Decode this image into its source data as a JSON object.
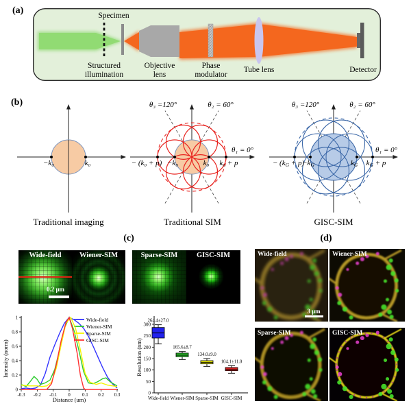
{
  "figure": {
    "panel_a": {
      "tag": "(a)",
      "labels": {
        "specimen": "Specimen",
        "structured_1": "Structured",
        "structured_2": "illumination",
        "objective_1": "Objective",
        "objective_2": "lens",
        "phase_1": "Phase",
        "phase_2": "modulator",
        "tube_lens": "Tube lens",
        "detector": "Detector"
      }
    },
    "panel_b": {
      "tag": "(b)",
      "traditional_imaging": {
        "caption": "Traditional imaging",
        "neg_k0": "−k₀",
        "k0": "k₀"
      },
      "traditional_sim": {
        "caption": "Traditional SIM",
        "theta3": "θ₃ =120°",
        "theta2": "θ₂ = 60°",
        "theta1": "θ₁ = 0°",
        "neg_k0p": "− (k₀ + p)",
        "neg_k0": "−k₀",
        "k0": "k₀",
        "k0p": "k₀ + p"
      },
      "gisc_sim": {
        "caption": "GISC-SIM",
        "theta3": "θ₃ =120°",
        "theta2": "θ₂ = 60°",
        "theta1": "θ₁ = 0°",
        "neg_kgp": [
          "− (k",
          "G",
          " + p)"
        ],
        "neg_kg": [
          "−k",
          "G",
          ""
        ],
        "kg": [
          "k",
          "G",
          ""
        ],
        "kgp": [
          "k",
          "G",
          " + p"
        ]
      }
    },
    "panel_c": {
      "tag": "(c)",
      "images": [
        {
          "label": "Wide-field",
          "scalebar": "0.2 μm"
        },
        {
          "label": "Wiener-SIM"
        },
        {
          "label": "Sparse-SIM"
        },
        {
          "label": "GISC-SIM"
        }
      ]
    },
    "panel_d": {
      "tag": "(d)",
      "images": [
        {
          "label": "Wide-field",
          "scalebar": "3 μm"
        },
        {
          "label": "Wiener-SIM"
        },
        {
          "label": "Sparse-SIM"
        },
        {
          "label": "GISC-SIM"
        }
      ]
    }
  },
  "chart_data": [
    {
      "type": "line",
      "title": "",
      "xlabel": "Distance (um)",
      "ylabel": "Intensity (norm)",
      "xlim": [
        -0.3,
        0.3
      ],
      "ylim": [
        0,
        1
      ],
      "xticks": [
        -0.3,
        -0.2,
        -0.1,
        0,
        0.1,
        0.2,
        0.3
      ],
      "yticks": [
        0,
        0.2,
        0.4,
        0.6,
        0.8,
        1
      ],
      "grid": false,
      "legend_position": "top-right",
      "series": [
        {
          "name": "Wide-field",
          "color": "#3434ff",
          "points": [
            [
              -0.3,
              0.01
            ],
            [
              -0.27,
              0.02
            ],
            [
              -0.24,
              0.01
            ],
            [
              -0.21,
              0.02
            ],
            [
              -0.18,
              0.06
            ],
            [
              -0.15,
              0.22
            ],
            [
              -0.12,
              0.45
            ],
            [
              -0.09,
              0.62
            ],
            [
              -0.06,
              0.78
            ],
            [
              -0.03,
              0.92
            ],
            [
              0,
              1
            ],
            [
              0.03,
              0.97
            ],
            [
              0.06,
              0.92
            ],
            [
              0.09,
              0.85
            ],
            [
              0.12,
              0.74
            ],
            [
              0.15,
              0.6
            ],
            [
              0.18,
              0.45
            ],
            [
              0.21,
              0.3
            ],
            [
              0.24,
              0.17
            ],
            [
              0.27,
              0.08
            ],
            [
              0.3,
              0.02
            ]
          ]
        },
        {
          "name": "Wiener-SIM",
          "color": "#2ecc2e",
          "points": [
            [
              -0.3,
              0.07
            ],
            [
              -0.27,
              0.04
            ],
            [
              -0.24,
              0.12
            ],
            [
              -0.22,
              0.18
            ],
            [
              -0.2,
              0.14
            ],
            [
              -0.18,
              0.07
            ],
            [
              -0.15,
              0.09
            ],
            [
              -0.12,
              0.13
            ],
            [
              -0.09,
              0.28
            ],
            [
              -0.06,
              0.55
            ],
            [
              -0.03,
              0.85
            ],
            [
              0,
              1
            ],
            [
              0.03,
              0.82
            ],
            [
              0.06,
              0.55
            ],
            [
              0.09,
              0.25
            ],
            [
              0.12,
              0.09
            ],
            [
              0.15,
              0.08
            ],
            [
              0.18,
              0.11
            ],
            [
              0.21,
              0.15
            ],
            [
              0.23,
              0.16
            ],
            [
              0.26,
              0.1
            ],
            [
              0.3,
              0.05
            ]
          ]
        },
        {
          "name": "Sparse-SIM",
          "color": "#f5f500",
          "points": [
            [
              -0.3,
              0.06
            ],
            [
              -0.25,
              0.05
            ],
            [
              -0.2,
              0.05
            ],
            [
              -0.17,
              0.04
            ],
            [
              -0.14,
              0.05
            ],
            [
              -0.11,
              0.1
            ],
            [
              -0.08,
              0.3
            ],
            [
              -0.05,
              0.62
            ],
            [
              -0.02,
              0.92
            ],
            [
              0.01,
              1
            ],
            [
              0.04,
              0.85
            ],
            [
              0.07,
              0.55
            ],
            [
              0.1,
              0.22
            ],
            [
              0.13,
              0.1
            ],
            [
              0.17,
              0.07
            ],
            [
              0.2,
              0.09
            ],
            [
              0.24,
              0.06
            ],
            [
              0.3,
              0.04
            ]
          ]
        },
        {
          "name": "GISC-SIM",
          "color": "#ff3030",
          "points": [
            [
              -0.3,
              0
            ],
            [
              -0.14,
              0
            ],
            [
              -0.11,
              0.08
            ],
            [
              -0.08,
              0.35
            ],
            [
              -0.05,
              0.68
            ],
            [
              -0.02,
              0.93
            ],
            [
              0,
              1
            ],
            [
              0.02,
              0.85
            ],
            [
              0.05,
              0.5
            ],
            [
              0.07,
              0.2
            ],
            [
              0.09,
              0.02
            ],
            [
              0.1,
              0
            ],
            [
              0.3,
              0
            ]
          ]
        }
      ]
    },
    {
      "type": "box",
      "title": "",
      "xlabel": "",
      "ylabel": "Resolution (nm)",
      "ylim": [
        0,
        340
      ],
      "yticks": [
        0,
        50,
        100,
        150,
        200,
        250,
        300
      ],
      "categories": [
        "Wide-field",
        "Wiener-SIM",
        "Sparse-SIM",
        "GISC-SIM"
      ],
      "annotations": [
        "264.4±27.0",
        "165.6±8.7",
        "134.0±9.0",
        "104.1±11.0"
      ],
      "colors": [
        "#2222ee",
        "#2ecc2e",
        "#f5f500",
        "#ee2222"
      ],
      "boxes": [
        {
          "whisker_low": 214,
          "q1": 240,
          "median": 262,
          "q3": 286,
          "whisker_high": 298
        },
        {
          "whisker_low": 146,
          "q1": 158,
          "median": 165,
          "q3": 174,
          "whisker_high": 181
        },
        {
          "whisker_low": 116,
          "q1": 127,
          "median": 134,
          "q3": 141,
          "whisker_high": 150
        },
        {
          "whisker_low": 86,
          "q1": 97,
          "median": 104,
          "q3": 111,
          "whisker_high": 119
        }
      ]
    }
  ]
}
